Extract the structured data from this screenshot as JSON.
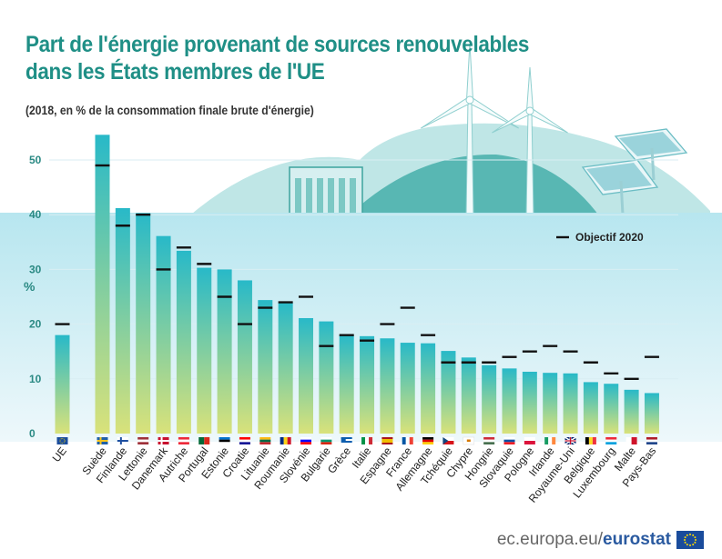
{
  "page": {
    "title_line1": "Part de l'énergie provenant de sources renouvelables",
    "title_line2": "dans les États membres de l'UE",
    "subtitle": "(2018, en % de la consommation finale brute d'énergie)",
    "footer_domain": "ec.europa.eu/",
    "footer_brand": "eurostat",
    "footer_logo_icon": "eu-flag-icon"
  },
  "colors": {
    "title": "#1f8f86",
    "bar_top": "#28b9c8",
    "bar_bottom": "#d9e27a",
    "plot_band_top": "#b7e6ef",
    "plot_band_bottom": "#eef8fb",
    "target_mark": "#111111",
    "grid": "#d9eef3",
    "axis_label": "#2b8a84",
    "hill": "#bfe6e6",
    "hill_dark": "#58b7b3"
  },
  "chart_data": {
    "type": "bar",
    "title": "Part de l'énergie provenant de sources renouvelables dans les États membres de l'UE",
    "subtitle": "(2018, en % de la consommation finale brute d'énergie)",
    "ylabel": "%",
    "xlabel": "",
    "ylim": [
      0,
      55
    ],
    "yticks": [
      0,
      10,
      20,
      30,
      40,
      50
    ],
    "grid": true,
    "legend_placement": "top-right",
    "categories": [
      "UE",
      "Suède",
      "Finlande",
      "Lettonie",
      "Danemark",
      "Autriche",
      "Portugal",
      "Estonie",
      "Croatie",
      "Lituanie",
      "Roumanie",
      "Slovénie",
      "Bulgarie",
      "Grèce",
      "Italie",
      "Espagne",
      "France",
      "Allemagne",
      "Tchéquie",
      "Chypre",
      "Hongrie",
      "Slovaquie",
      "Pologne",
      "Irlande",
      "Royaume-Uni",
      "Belgique",
      "Luxembourg",
      "Malte",
      "Pays-Bas"
    ],
    "series": [
      {
        "name": "",
        "values": [
          18.0,
          54.6,
          41.2,
          40.3,
          36.1,
          33.4,
          30.3,
          30.0,
          28.0,
          24.4,
          23.9,
          21.1,
          20.5,
          18.0,
          17.8,
          17.4,
          16.6,
          16.5,
          15.1,
          13.9,
          12.5,
          11.9,
          11.3,
          11.1,
          11.0,
          9.4,
          9.1,
          8.0,
          7.4
        ]
      },
      {
        "name": "Objectif 2020",
        "values": [
          20,
          49,
          38,
          40,
          30,
          34,
          31,
          25,
          20,
          23,
          24,
          25,
          16,
          18,
          17,
          20,
          23,
          18,
          13,
          13,
          13,
          14,
          15,
          16,
          15,
          13,
          11,
          10,
          14
        ]
      }
    ],
    "flags": [
      {
        "type": "eu"
      },
      {
        "type": "nordic",
        "colors": [
          "#1f5fa8",
          "#f4c41f"
        ]
      },
      {
        "type": "nordic",
        "colors": [
          "#ffffff",
          "#1e4fa0"
        ]
      },
      {
        "type": "h3",
        "colors": [
          "#9e3039",
          "#ffffff",
          "#9e3039"
        ]
      },
      {
        "type": "nordic",
        "colors": [
          "#c8102e",
          "#ffffff"
        ]
      },
      {
        "type": "h3",
        "colors": [
          "#ed2939",
          "#ffffff",
          "#ed2939"
        ]
      },
      {
        "type": "v2",
        "colors": [
          "#046a38",
          "#da291c"
        ]
      },
      {
        "type": "h3",
        "colors": [
          "#0072ce",
          "#000000",
          "#ffffff"
        ]
      },
      {
        "type": "h3",
        "colors": [
          "#ff0000",
          "#ffffff",
          "#171796"
        ]
      },
      {
        "type": "h3",
        "colors": [
          "#fdb913",
          "#006a44",
          "#c1272d"
        ]
      },
      {
        "type": "v3",
        "colors": [
          "#002b7f",
          "#fcd116",
          "#ce1126"
        ]
      },
      {
        "type": "h3",
        "colors": [
          "#ffffff",
          "#0000ff",
          "#ff0000"
        ]
      },
      {
        "type": "h3",
        "colors": [
          "#ffffff",
          "#00966e",
          "#d62612"
        ]
      },
      {
        "type": "stripes",
        "colors": [
          "#0d5eaf",
          "#ffffff"
        ]
      },
      {
        "type": "v3",
        "colors": [
          "#009246",
          "#ffffff",
          "#ce2b37"
        ]
      },
      {
        "type": "h3r",
        "colors": [
          "#aa151b",
          "#f1bf00",
          "#aa151b"
        ]
      },
      {
        "type": "v3",
        "colors": [
          "#0055a4",
          "#ffffff",
          "#ef4135"
        ]
      },
      {
        "type": "h3",
        "colors": [
          "#000000",
          "#dd0000",
          "#ffce00"
        ]
      },
      {
        "type": "cz",
        "colors": [
          "#ffffff",
          "#d7141a",
          "#11457e"
        ]
      },
      {
        "type": "plain",
        "colors": [
          "#ffffff",
          "#d57800"
        ]
      },
      {
        "type": "h3",
        "colors": [
          "#ce2939",
          "#ffffff",
          "#477050"
        ]
      },
      {
        "type": "h3",
        "colors": [
          "#ffffff",
          "#0b4ea2",
          "#ee1c25"
        ]
      },
      {
        "type": "h2",
        "colors": [
          "#ffffff",
          "#dc143c"
        ]
      },
      {
        "type": "v3",
        "colors": [
          "#169b62",
          "#ffffff",
          "#ff883e"
        ]
      },
      {
        "type": "uk",
        "colors": [
          "#012169",
          "#ffffff",
          "#c8102e"
        ]
      },
      {
        "type": "v3",
        "colors": [
          "#000000",
          "#fdda24",
          "#ef3340"
        ]
      },
      {
        "type": "h3",
        "colors": [
          "#ed2939",
          "#ffffff",
          "#00a1de"
        ]
      },
      {
        "type": "v2",
        "colors": [
          "#ffffff",
          "#cf142b"
        ]
      },
      {
        "type": "h3",
        "colors": [
          "#ae1c28",
          "#ffffff",
          "#21468b"
        ]
      }
    ],
    "icons": [
      "wind-turbine-icon",
      "solar-panel-icon",
      "dam-icon"
    ]
  }
}
